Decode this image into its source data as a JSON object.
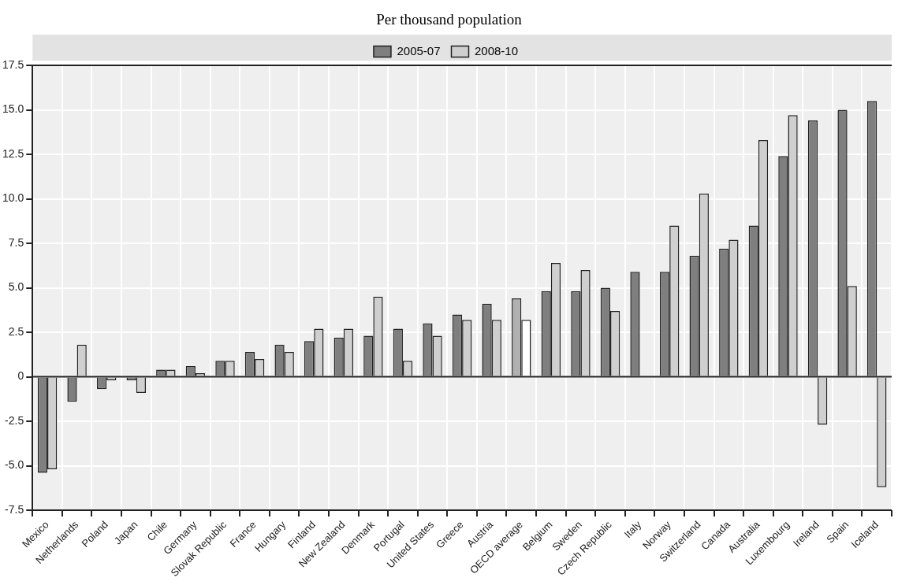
{
  "chart_data": {
    "type": "bar",
    "title": "Per thousand population",
    "categories": [
      "Mexico",
      "Netherlands",
      "Poland",
      "Japan",
      "Chile",
      "Germany",
      "Slovak Republic",
      "France",
      "Hungary",
      "Finland",
      "New Zealand",
      "Denmark",
      "Portugal",
      "United States",
      "Greece",
      "Austria",
      "OECD average",
      "Belgium",
      "Sweden",
      "Czech Republic",
      "Italy",
      "Norway",
      "Switzerland",
      "Canada",
      "Australia",
      "Luxembourg",
      "Ireland",
      "Spain",
      "Iceland"
    ],
    "series": [
      {
        "name": "2005-07",
        "color": "#7f7f7f",
        "colors": [
          "#7f7f7f",
          "#7f7f7f",
          "#7f7f7f",
          "#7f7f7f",
          "#7f7f7f",
          "#7f7f7f",
          "#7f7f7f",
          "#7f7f7f",
          "#7f7f7f",
          "#7f7f7f",
          "#7f7f7f",
          "#7f7f7f",
          "#7f7f7f",
          "#7f7f7f",
          "#7f7f7f",
          "#7f7f7f",
          "#b0b0b0",
          "#7f7f7f",
          "#7f7f7f",
          "#7f7f7f",
          "#7f7f7f",
          "#7f7f7f",
          "#7f7f7f",
          "#7f7f7f",
          "#7f7f7f",
          "#7f7f7f",
          "#7f7f7f",
          "#7f7f7f",
          "#7f7f7f"
        ],
        "values": [
          -5.4,
          -1.4,
          -0.7,
          -0.2,
          0.4,
          0.6,
          0.9,
          1.4,
          1.8,
          2.0,
          2.2,
          2.3,
          2.7,
          3.0,
          3.5,
          4.1,
          4.4,
          4.8,
          4.8,
          5.0,
          5.9,
          5.9,
          6.8,
          7.2,
          8.5,
          12.4,
          14.4,
          15.0,
          15.5
        ]
      },
      {
        "name": "2008-10",
        "color": "#cfcfcf",
        "colors": [
          "#cfcfcf",
          "#cfcfcf",
          "#cfcfcf",
          "#cfcfcf",
          "#cfcfcf",
          "#cfcfcf",
          "#cfcfcf",
          "#cfcfcf",
          "#cfcfcf",
          "#cfcfcf",
          "#cfcfcf",
          "#cfcfcf",
          "#cfcfcf",
          "#cfcfcf",
          "#cfcfcf",
          "#cfcfcf",
          "#ffffff",
          "#cfcfcf",
          "#cfcfcf",
          "#cfcfcf",
          "#cfcfcf",
          "#cfcfcf",
          "#cfcfcf",
          "#cfcfcf",
          "#cfcfcf",
          "#cfcfcf",
          "#cfcfcf",
          "#cfcfcf",
          "#cfcfcf"
        ],
        "values": [
          -5.2,
          1.8,
          -0.2,
          -0.9,
          0.4,
          0.2,
          0.9,
          1.0,
          1.4,
          2.7,
          2.7,
          4.5,
          0.9,
          2.3,
          3.2,
          3.2,
          3.2,
          6.4,
          6.0,
          3.7,
          null,
          8.5,
          10.3,
          7.7,
          13.3,
          14.7,
          -2.7,
          5.1,
          -6.2
        ]
      }
    ],
    "ylim": [
      -7.5,
      17.5
    ],
    "yticks": [
      {
        "value": -7.5,
        "label": "-7.5"
      },
      {
        "value": -5,
        "label": "-5.0"
      },
      {
        "value": -2.5,
        "label": "-2.5"
      },
      {
        "value": 0,
        "label": "0"
      },
      {
        "value": 2.5,
        "label": "2.5"
      },
      {
        "value": 5,
        "label": "5.0"
      },
      {
        "value": 7.5,
        "label": "7.5"
      },
      {
        "value": 10,
        "label": "10.0"
      },
      {
        "value": 12.5,
        "label": "12.5"
      },
      {
        "value": 15,
        "label": "15.0"
      },
      {
        "value": 17.5,
        "label": "17.5"
      }
    ],
    "grid": true,
    "legend": "top"
  }
}
